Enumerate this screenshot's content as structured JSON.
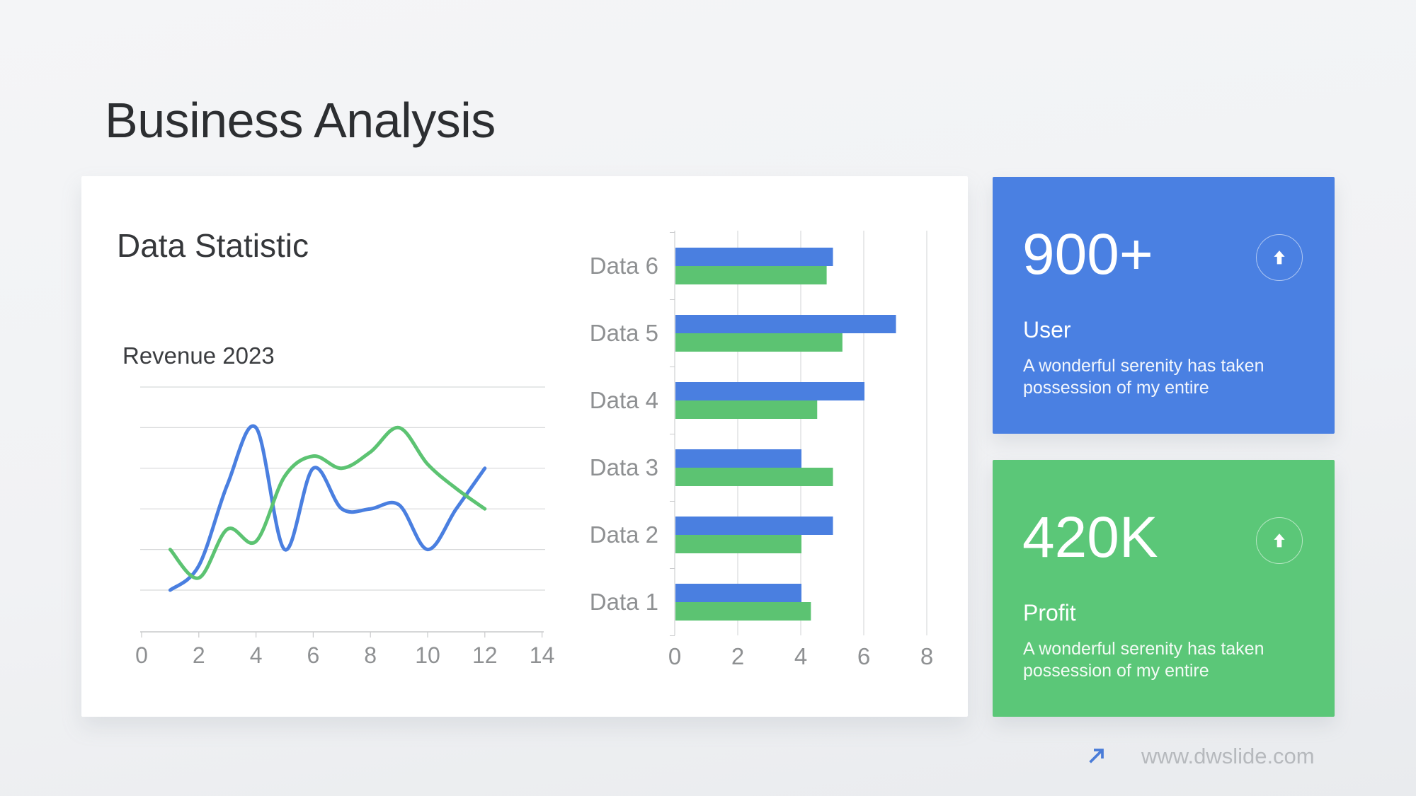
{
  "slide": {
    "title": "Business Analysis",
    "footer": {
      "website": "www.dwslide.com",
      "arrow_icon": "arrow-up-right",
      "arrow_color": "#4a7cd8"
    }
  },
  "panel": {
    "heading": "Data Statistic"
  },
  "chart_data": [
    {
      "id": "revenue_line",
      "type": "line",
      "title": "Revenue 2023",
      "x": [
        1,
        2,
        3,
        4,
        5,
        6,
        7,
        8,
        9,
        10,
        11,
        12
      ],
      "series": [
        {
          "name": "series-blue",
          "color": "#4a7fe0",
          "values": [
            0,
            0.6,
            2.6,
            4,
            1,
            3,
            2,
            2,
            2.1,
            1,
            2,
            3
          ]
        },
        {
          "name": "series-green",
          "color": "#5cc372",
          "values": [
            1,
            0.3,
            1.5,
            1.2,
            2.8,
            3.3,
            3,
            3.4,
            4,
            3.1,
            2.5,
            2
          ]
        }
      ],
      "xlabel": "",
      "ylabel": "",
      "xlim": [
        0,
        14
      ],
      "ylim": [
        0,
        5
      ],
      "xticks": [
        0,
        2,
        4,
        6,
        8,
        10,
        12,
        14
      ],
      "grid_y_step": 1,
      "grid": "horizontal",
      "legend": "none",
      "smooth": true
    },
    {
      "id": "data_bars",
      "type": "bar",
      "orientation": "horizontal",
      "category_order": "top-to-bottom",
      "categories": [
        "Data 6",
        "Data 5",
        "Data 4",
        "Data 3",
        "Data 2",
        "Data 1"
      ],
      "series": [
        {
          "name": "series-blue",
          "color": "#4a7fe0",
          "values": [
            5,
            7,
            6,
            4,
            5,
            4
          ]
        },
        {
          "name": "series-green",
          "color": "#5cc372",
          "values": [
            4.8,
            5.3,
            4.5,
            5,
            4,
            4.3
          ]
        }
      ],
      "xlabel": "",
      "ylabel": "",
      "xlim": [
        0,
        8
      ],
      "xticks": [
        0,
        2,
        4,
        6,
        8
      ],
      "grid": "vertical",
      "legend": "none"
    }
  ],
  "cards": [
    {
      "id": "user",
      "value": "900+",
      "label": "User",
      "description": "A wonderful serenity has taken possession of my entire",
      "color": "#4a80e2",
      "icon": "arrow-up"
    },
    {
      "id": "profit",
      "value": "420K",
      "label": "Profit",
      "description": "A wonderful serenity has taken possession of my entire",
      "color": "#5bc778",
      "icon": "arrow-up"
    }
  ]
}
